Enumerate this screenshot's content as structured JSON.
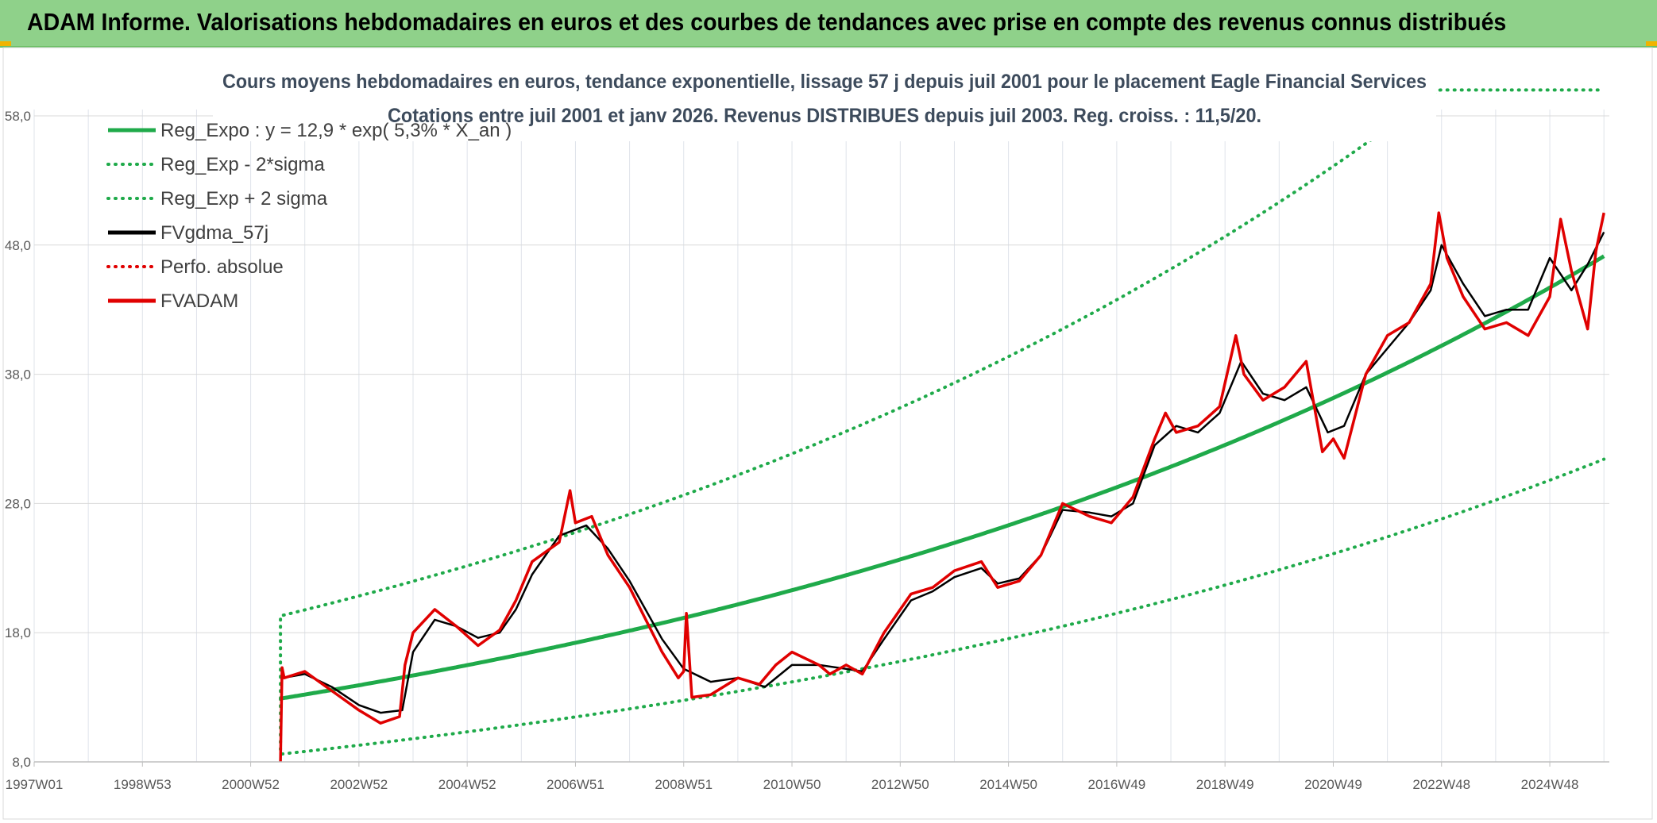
{
  "header": {
    "title": "ADAM Informe. Valorisations hebdomadaires en euros et des courbes de tendances avec prise en compte des revenus connus distribués"
  },
  "chart_data": {
    "type": "line",
    "title_line1": "Cours moyens hebdomadaires en euros, tendance exponentielle, lissage 57 j depuis juil 2001 pour le placement Eagle Financial Services",
    "title_line2": "Cotations entre juil 2001 et janv 2026. Revenus DISTRIBUES depuis juil 2003. Reg. croiss. : 11,5/20.",
    "x_range": [
      1997.0,
      2026.1
    ],
    "ylim": [
      8,
      58
    ],
    "y_ticks": [
      "8,0",
      "18,0",
      "28,0",
      "38,0",
      "48,0",
      "58,0"
    ],
    "x_ticks": [
      {
        "label": "1997W01",
        "year": 1997.0
      },
      {
        "label": "1998W53",
        "year": 1999.0
      },
      {
        "label": "2000W52",
        "year": 2001.0
      },
      {
        "label": "2002W52",
        "year": 2003.0
      },
      {
        "label": "2004W52",
        "year": 2005.0
      },
      {
        "label": "2006W51",
        "year": 2007.0
      },
      {
        "label": "2008W51",
        "year": 2009.0
      },
      {
        "label": "2010W50",
        "year": 2011.0
      },
      {
        "label": "2012W50",
        "year": 2013.0
      },
      {
        "label": "2014W50",
        "year": 2015.0
      },
      {
        "label": "2016W49",
        "year": 2017.0
      },
      {
        "label": "2018W49",
        "year": 2019.0
      },
      {
        "label": "2020W49",
        "year": 2021.0
      },
      {
        "label": "2022W48",
        "year": 2023.0
      },
      {
        "label": "2024W48",
        "year": 2025.0
      }
    ],
    "grid": true,
    "legend_position": "top-left",
    "series": [
      {
        "name": "Reg_Expo : y = 12,9 * exp( 5,3% *  X_an )",
        "color": "#1faa4a",
        "style": "solid",
        "kind": "exp",
        "start": 2001.55,
        "end": 2026.0,
        "a": 12.9,
        "r": 0.053
      },
      {
        "name": "Reg_Exp - 2*sigma",
        "color": "#1faa4a",
        "style": "dotted",
        "kind": "exp",
        "start": 2001.55,
        "end": 2026.0,
        "a": 8.6,
        "r": 0.053
      },
      {
        "name": "Reg_Exp + 2 sigma",
        "color": "#1faa4a",
        "style": "dotted",
        "kind": "exp",
        "start": 2001.55,
        "end": 2026.0,
        "a": 19.3,
        "r": 0.053,
        "cap": 60
      },
      {
        "name": "FVgdma_57j",
        "color": "#000000",
        "style": "solid",
        "kind": "data",
        "x": [
          2001.6,
          2002.0,
          2002.5,
          2003.0,
          2003.4,
          2003.8,
          2004.0,
          2004.4,
          2004.8,
          2005.2,
          2005.6,
          2005.9,
          2006.2,
          2006.7,
          2007.2,
          2007.6,
          2008.0,
          2008.6,
          2009.0,
          2009.5,
          2010.0,
          2010.5,
          2011.0,
          2011.5,
          2012.0,
          2012.3,
          2012.7,
          2013.2,
          2013.6,
          2014.0,
          2014.5,
          2014.8,
          2015.2,
          2015.6,
          2016.0,
          2016.5,
          2016.9,
          2017.3,
          2017.7,
          2018.1,
          2018.5,
          2018.9,
          2019.3,
          2019.7,
          2020.1,
          2020.5,
          2020.9,
          2021.2,
          2021.6,
          2022.0,
          2022.4,
          2022.8,
          2023.0,
          2023.4,
          2023.8,
          2024.2,
          2024.6,
          2025.0,
          2025.4,
          2025.7,
          2026.0
        ],
        "y": [
          14.5,
          14.8,
          13.8,
          12.4,
          11.8,
          12.0,
          16.5,
          19.0,
          18.5,
          17.6,
          18.0,
          19.8,
          22.5,
          25.5,
          26.3,
          24.5,
          22.0,
          17.5,
          15.2,
          14.2,
          14.5,
          13.8,
          15.5,
          15.5,
          15.2,
          15.0,
          17.5,
          20.5,
          21.2,
          22.3,
          23.0,
          21.8,
          22.2,
          24.0,
          27.5,
          27.3,
          27.0,
          28.0,
          32.5,
          34.0,
          33.5,
          35.0,
          39.0,
          36.5,
          36.0,
          37.0,
          33.5,
          34.0,
          38.0,
          40.0,
          42.0,
          44.5,
          48.0,
          45.0,
          42.5,
          43.0,
          43.0,
          47.0,
          44.5,
          46.5,
          49.0
        ]
      },
      {
        "name": "Perfo. absolue",
        "color": "#e00000",
        "style": "dotted",
        "kind": "none"
      },
      {
        "name": "FVADAM",
        "color": "#e00000",
        "style": "solid",
        "kind": "data",
        "x": [
          2001.55,
          2001.58,
          2001.62,
          2002.0,
          2002.5,
          2003.0,
          2003.4,
          2003.75,
          2003.85,
          2004.0,
          2004.4,
          2004.8,
          2005.2,
          2005.6,
          2005.9,
          2006.2,
          2006.7,
          2006.9,
          2007.0,
          2007.3,
          2007.6,
          2008.0,
          2008.3,
          2008.6,
          2008.9,
          2009.0,
          2009.05,
          2009.15,
          2009.5,
          2010.0,
          2010.4,
          2010.7,
          2011.0,
          2011.5,
          2011.7,
          2012.0,
          2012.3,
          2012.7,
          2013.2,
          2013.6,
          2014.0,
          2014.5,
          2014.8,
          2015.2,
          2015.6,
          2016.0,
          2016.5,
          2016.9,
          2017.3,
          2017.7,
          2017.9,
          2018.1,
          2018.5,
          2018.9,
          2019.2,
          2019.35,
          2019.7,
          2020.1,
          2020.5,
          2020.8,
          2021.0,
          2021.2,
          2021.6,
          2022.0,
          2022.4,
          2022.8,
          2022.95,
          2023.1,
          2023.4,
          2023.8,
          2024.2,
          2024.6,
          2025.0,
          2025.2,
          2025.4,
          2025.7,
          2025.85,
          2026.0
        ],
        "y": [
          8.0,
          15.3,
          14.5,
          15.0,
          13.5,
          12.0,
          11.0,
          11.5,
          15.5,
          18.0,
          19.8,
          18.5,
          17.0,
          18.2,
          20.5,
          23.5,
          25.0,
          29.0,
          26.5,
          27.0,
          24.0,
          21.5,
          19.0,
          16.5,
          14.5,
          15.0,
          19.5,
          13.0,
          13.2,
          14.5,
          14.0,
          15.5,
          16.5,
          15.5,
          14.8,
          15.5,
          14.8,
          18.0,
          21.0,
          21.5,
          22.8,
          23.5,
          21.5,
          22.0,
          24.0,
          28.0,
          27.0,
          26.5,
          28.5,
          33.0,
          35.0,
          33.5,
          34.0,
          35.5,
          41.0,
          38.0,
          36.0,
          37.0,
          39.0,
          32.0,
          33.0,
          31.5,
          38.0,
          41.0,
          42.0,
          45.0,
          50.5,
          47.0,
          44.0,
          41.5,
          42.0,
          41.0,
          44.0,
          50.0,
          46.0,
          41.5,
          47.5,
          50.5
        ]
      }
    ]
  }
}
